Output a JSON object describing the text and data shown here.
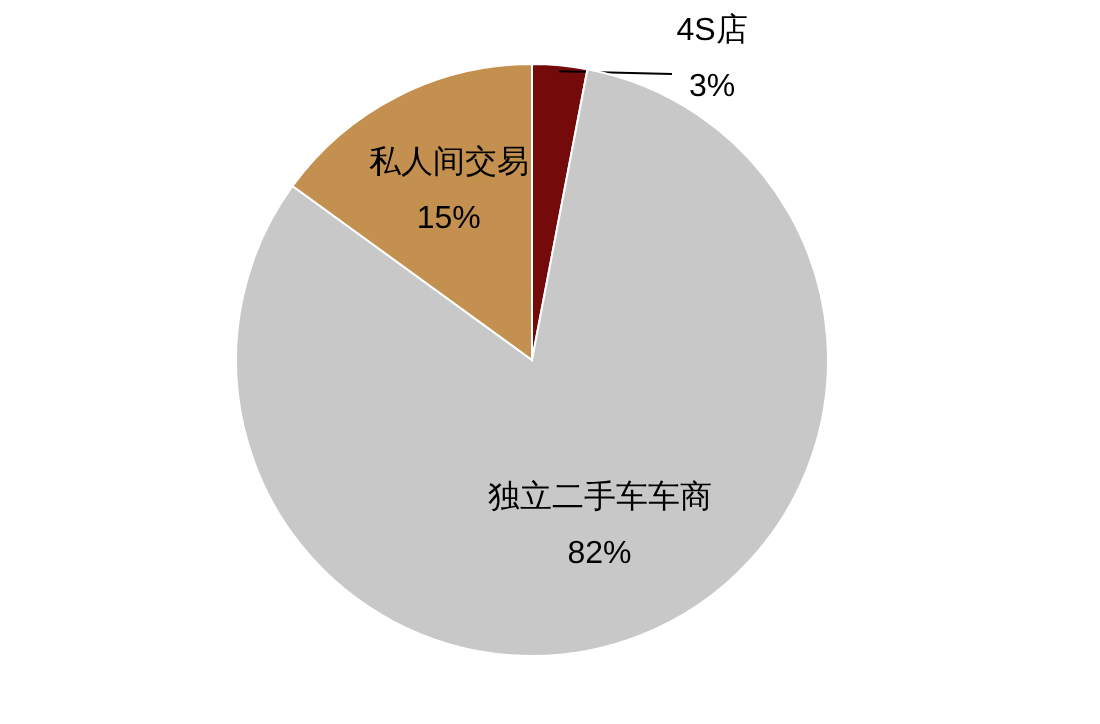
{
  "chart_data": {
    "type": "pie",
    "categories": [
      "4S店",
      "独立二手车车商",
      "私人间交易"
    ],
    "values": [
      3,
      82,
      15
    ],
    "value_labels": [
      "3%",
      "82%",
      "15%"
    ],
    "colors": [
      "#750a0a",
      "#c8c8c8",
      "#c4904f"
    ]
  }
}
